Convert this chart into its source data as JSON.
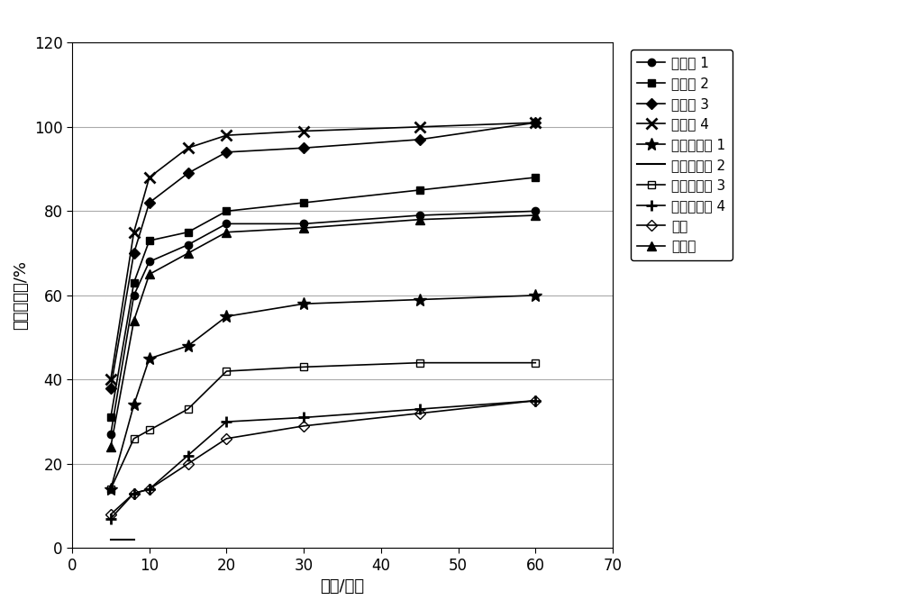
{
  "time": [
    5,
    8,
    10,
    15,
    20,
    30,
    45,
    60
  ],
  "series_order": [
    "实施例1",
    "实施例2",
    "实施例3",
    "实施例4",
    "对比实施例1",
    "对比实施例2",
    "对比实施例3",
    "对比实施例4",
    "原料",
    "进口片"
  ],
  "series": {
    "实施例1": {
      "values": [
        27,
        60,
        68,
        72,
        77,
        77,
        79,
        80
      ],
      "label": "实施例 1"
    },
    "实施例2": {
      "values": [
        31,
        63,
        73,
        75,
        80,
        82,
        85,
        88
      ],
      "label": "实施例 2"
    },
    "实施例3": {
      "values": [
        38,
        70,
        82,
        89,
        94,
        95,
        97,
        101
      ],
      "label": "实施例 3"
    },
    "实施例4": {
      "values": [
        40,
        75,
        88,
        95,
        98,
        99,
        100,
        101
      ],
      "label": "实施例 4"
    },
    "对比实施例1": {
      "values": [
        14,
        34,
        45,
        48,
        55,
        58,
        59,
        60
      ],
      "label": "对比实施例 1"
    },
    "对比实施例2": {
      "values": null,
      "label": "对比实施例 2"
    },
    "对比实施例3": {
      "values": [
        14,
        26,
        28,
        33,
        42,
        43,
        44,
        44
      ],
      "label": "对比实施例 3"
    },
    "对比实施例4": {
      "values": [
        7,
        13,
        14,
        22,
        30,
        31,
        33,
        35
      ],
      "label": "对比实施例 4"
    },
    "原料": {
      "values": [
        8,
        13,
        14,
        20,
        26,
        29,
        32,
        35
      ],
      "label": "原料"
    },
    "进口片": {
      "values": [
        24,
        54,
        65,
        70,
        75,
        76,
        78,
        79
      ],
      "label": "进口片"
    }
  },
  "xlabel": "时间/分钟",
  "ylabel": "累积溶出度/%",
  "xlim": [
    0,
    70
  ],
  "ylim": [
    0,
    120
  ],
  "xticks": [
    0,
    10,
    20,
    30,
    40,
    50,
    60,
    70
  ],
  "yticks": [
    0,
    20,
    40,
    60,
    80,
    100,
    120
  ],
  "background_color": "#ffffff",
  "font_size": 13,
  "tick_fontsize": 12,
  "legend_fontsize": 11
}
